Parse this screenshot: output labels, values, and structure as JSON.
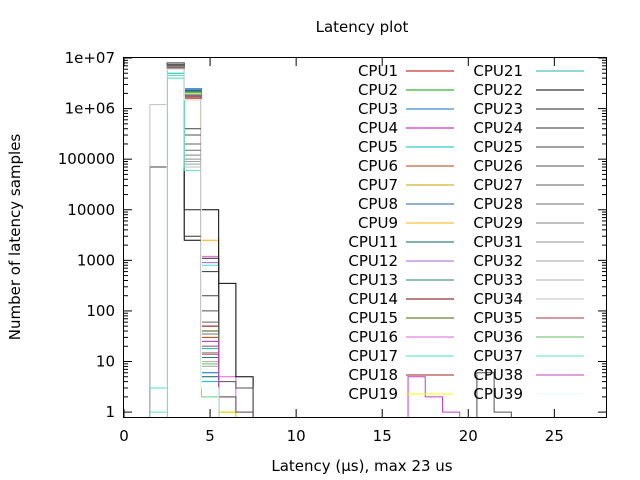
{
  "chart_data": {
    "type": "line",
    "title": "Latency plot",
    "xlabel": "Latency (µs), max 23 us",
    "ylabel": "Number of latency samples",
    "xlim": [
      0,
      28
    ],
    "ylim": [
      0.8,
      10000000
    ],
    "y_scale": "log",
    "grid": false,
    "legend_position": "top-right",
    "step_style": "histogram-steps",
    "xticks": [
      0,
      5,
      10,
      15,
      20,
      25
    ],
    "yticks": [
      {
        "value": 1,
        "label": "1"
      },
      {
        "value": 10,
        "label": "10"
      },
      {
        "value": 100,
        "label": "100"
      },
      {
        "value": 1000,
        "label": "1000"
      },
      {
        "value": 10000,
        "label": "10000"
      },
      {
        "value": 100000,
        "label": "100000"
      },
      {
        "value": 1000000,
        "label": "1e+06"
      },
      {
        "value": 10000000,
        "label": "1e+07"
      }
    ],
    "legend_columns": 2,
    "series": [
      {
        "name": "CPU1",
        "color": "#c00000",
        "points": [
          [
            3,
            7000000
          ],
          [
            4,
            1500000
          ],
          [
            5,
            12
          ],
          [
            6,
            1
          ]
        ]
      },
      {
        "name": "CPU2",
        "color": "#00a000",
        "points": [
          [
            3,
            6500000
          ],
          [
            4,
            2000000
          ],
          [
            5,
            8
          ]
        ]
      },
      {
        "name": "CPU3",
        "color": "#0070d0",
        "points": [
          [
            3,
            6800000
          ],
          [
            4,
            1800000
          ],
          [
            5,
            6
          ],
          [
            6,
            1
          ]
        ]
      },
      {
        "name": "CPU4",
        "color": "#c000c0",
        "points": [
          [
            3,
            6000000
          ],
          [
            4,
            2200000
          ],
          [
            5,
            10
          ],
          [
            6,
            2
          ]
        ]
      },
      {
        "name": "CPU5",
        "color": "#00c0c0",
        "points": [
          [
            3,
            5000000
          ],
          [
            4,
            2500000
          ],
          [
            5,
            4
          ]
        ]
      },
      {
        "name": "CPU6",
        "color": "#b04000",
        "points": [
          [
            3,
            7200000
          ],
          [
            4,
            1600000
          ],
          [
            5,
            30
          ]
        ]
      },
      {
        "name": "CPU7",
        "color": "#c0a000",
        "points": [
          [
            3,
            6600000
          ],
          [
            4,
            2000000
          ],
          [
            5,
            2
          ],
          [
            6,
            1
          ]
        ]
      },
      {
        "name": "CPU8",
        "color": "#2060a0",
        "points": [
          [
            3,
            6900000
          ],
          [
            4,
            1700000
          ],
          [
            5,
            3
          ]
        ]
      },
      {
        "name": "CPU9",
        "color": "#ffb000",
        "points": [
          [
            3,
            6300000
          ],
          [
            4,
            2100000
          ],
          [
            5,
            2500
          ]
        ]
      },
      {
        "name": "CPU11",
        "color": "#006060",
        "points": [
          [
            3,
            6100000
          ],
          [
            4,
            2300000
          ],
          [
            5,
            5
          ]
        ]
      },
      {
        "name": "CPU12",
        "color": "#a060e0",
        "points": [
          [
            3,
            6200000
          ],
          [
            4,
            2400000
          ],
          [
            5,
            900
          ]
        ]
      },
      {
        "name": "CPU13",
        "color": "#208060",
        "points": [
          [
            3,
            6400000
          ],
          [
            4,
            2200000
          ],
          [
            5,
            12
          ]
        ]
      },
      {
        "name": "CPU14",
        "color": "#800000",
        "points": [
          [
            3,
            6700000
          ],
          [
            4,
            1900000
          ],
          [
            5,
            50
          ]
        ]
      },
      {
        "name": "CPU15",
        "color": "#406000",
        "points": [
          [
            3,
            6500000
          ],
          [
            4,
            2000000
          ],
          [
            5,
            40
          ]
        ]
      },
      {
        "name": "CPU16",
        "color": "#e060e0",
        "points": [
          [
            3,
            6000000
          ],
          [
            4,
            2100000
          ],
          [
            5,
            1200
          ],
          [
            6,
            5
          ],
          [
            7,
            1
          ]
        ]
      },
      {
        "name": "CPU17",
        "color": "#40e0d0",
        "points": [
          [
            2,
            3
          ],
          [
            3,
            4000000
          ],
          [
            4,
            80000
          ],
          [
            5,
            800
          ]
        ]
      },
      {
        "name": "CPU18",
        "color": "#a02020",
        "points": [
          [
            3,
            6800000
          ],
          [
            4,
            1900000
          ],
          [
            5,
            20
          ]
        ]
      },
      {
        "name": "CPU19",
        "color": "#ffff00",
        "points": [
          [
            3,
            6300000
          ],
          [
            4,
            2000000
          ],
          [
            5,
            2
          ],
          [
            6,
            1
          ]
        ]
      },
      {
        "name": "CPU21",
        "color": "#20b0b0",
        "points": [
          [
            3,
            6600000
          ],
          [
            4,
            2100000
          ],
          [
            5,
            18
          ]
        ]
      },
      {
        "name": "CPU22",
        "color": "#000000",
        "points": [
          [
            3,
            7000000
          ],
          [
            4,
            2500
          ],
          [
            5,
            10000
          ],
          [
            6,
            350
          ],
          [
            7,
            5
          ]
        ]
      },
      {
        "name": "CPU23",
        "color": "#202020",
        "points": [
          [
            3,
            6900000
          ],
          [
            4,
            10000
          ],
          [
            5,
            1100
          ]
        ]
      },
      {
        "name": "CPU24",
        "color": "#303030",
        "points": [
          [
            3,
            7100000
          ],
          [
            4,
            3000
          ],
          [
            5,
            600
          ]
        ]
      },
      {
        "name": "CPU25",
        "color": "#404040",
        "points": [
          [
            2,
            70000
          ],
          [
            3,
            8000000
          ],
          [
            4,
            400000
          ],
          [
            5,
            200
          ]
        ]
      },
      {
        "name": "CPU26",
        "color": "#505050",
        "points": [
          [
            3,
            7500000
          ],
          [
            4,
            300000
          ],
          [
            5,
            100
          ],
          [
            6,
            4
          ],
          [
            7,
            3
          ],
          [
            21,
            6
          ],
          [
            22,
            1
          ]
        ]
      },
      {
        "name": "CPU27",
        "color": "#606060",
        "points": [
          [
            3,
            7300000
          ],
          [
            4,
            200000
          ],
          [
            5,
            60
          ],
          [
            6,
            2
          ],
          [
            7,
            1
          ]
        ]
      },
      {
        "name": "CPU28",
        "color": "#707070",
        "points": [
          [
            3,
            7000000
          ],
          [
            4,
            150000
          ],
          [
            5,
            35
          ]
        ]
      },
      {
        "name": "CPU29",
        "color": "#808080",
        "points": [
          [
            3,
            6800000
          ],
          [
            4,
            120000
          ],
          [
            5,
            25
          ]
        ]
      },
      {
        "name": "CPU31",
        "color": "#909090",
        "points": [
          [
            3,
            6600000
          ],
          [
            4,
            100000
          ],
          [
            5,
            20
          ]
        ]
      },
      {
        "name": "CPU32",
        "color": "#a0a0a0",
        "points": [
          [
            3,
            6400000
          ],
          [
            4,
            90000
          ],
          [
            5,
            15
          ]
        ]
      },
      {
        "name": "CPU33",
        "color": "#b0b0b0",
        "points": [
          [
            3,
            6200000
          ],
          [
            4,
            80000
          ],
          [
            5,
            10
          ]
        ]
      },
      {
        "name": "CPU34",
        "color": "#c0c0c0",
        "points": [
          [
            2,
            1200000
          ],
          [
            3,
            6000000
          ],
          [
            4,
            70000
          ],
          [
            5,
            8
          ]
        ]
      },
      {
        "name": "CPU35",
        "color": "#b03040",
        "points": [
          [
            3,
            6500000
          ],
          [
            4,
            1700000
          ],
          [
            5,
            14
          ]
        ]
      },
      {
        "name": "CPU36",
        "color": "#60c060",
        "points": [
          [
            3,
            6300000
          ],
          [
            4,
            1900000
          ],
          [
            5,
            9
          ]
        ]
      },
      {
        "name": "CPU37",
        "color": "#60e0c0",
        "points": [
          [
            2,
            1
          ],
          [
            3,
            4500000
          ],
          [
            4,
            60000
          ],
          [
            5,
            2
          ]
        ]
      },
      {
        "name": "CPU38",
        "color": "#c040c0",
        "points": [
          [
            3,
            6100000
          ],
          [
            4,
            1800000
          ],
          [
            5,
            25
          ],
          [
            17,
            5
          ],
          [
            18,
            2
          ],
          [
            19,
            1
          ]
        ]
      },
      {
        "name": "CPU39",
        "color": "#e0fff0",
        "points": [
          [
            3,
            6000000
          ],
          [
            4,
            1500000
          ],
          [
            5,
            3
          ]
        ]
      }
    ]
  }
}
